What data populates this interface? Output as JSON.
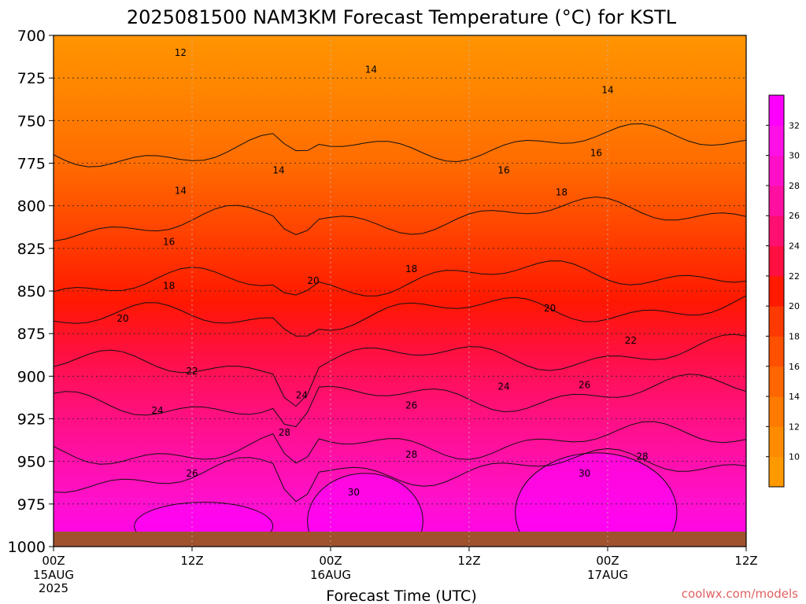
{
  "chart_data": {
    "type": "contour",
    "title": "2025081500 NAM3KM Forecast Temperature (°C) for KSTL",
    "xlabel": "Forecast Time (UTC)",
    "ylabel": "",
    "x_ticks": [
      {
        "hour": 0,
        "label": "00Z",
        "sub": "15AUG",
        "sub2": "2025"
      },
      {
        "hour": 12,
        "label": "12Z",
        "sub": "",
        "sub2": ""
      },
      {
        "hour": 24,
        "label": "00Z",
        "sub": "16AUG",
        "sub2": ""
      },
      {
        "hour": 36,
        "label": "12Z",
        "sub": "",
        "sub2": ""
      },
      {
        "hour": 48,
        "label": "00Z",
        "sub": "17AUG",
        "sub2": ""
      },
      {
        "hour": 60,
        "label": "12Z",
        "sub": "",
        "sub2": ""
      }
    ],
    "xlim": [
      0,
      60
    ],
    "y_levels": [
      700,
      725,
      750,
      775,
      800,
      825,
      850,
      875,
      900,
      925,
      950,
      975,
      1000
    ],
    "ylim": [
      700,
      1000
    ],
    "colorbar": {
      "min": 8,
      "max": 34,
      "step": 2,
      "labels": [
        10,
        12,
        14,
        16,
        18,
        20,
        22,
        24,
        26,
        28,
        30,
        32
      ],
      "colors": [
        "#ff9900",
        "#ff8c00",
        "#ff7a00",
        "#ff6600",
        "#ff5000",
        "#ff3a00",
        "#ff1a00",
        "#ff1040",
        "#ff1070",
        "#ff10a0",
        "#ff10c8",
        "#ff10e6",
        "#ff00ff"
      ]
    },
    "contour_levels": [
      12,
      14,
      16,
      18,
      20,
      22,
      24,
      26,
      28,
      30
    ],
    "contour_labels": [
      {
        "value": "12",
        "hour": 11.0,
        "pressure": 711
      },
      {
        "value": "14",
        "hour": 27.5,
        "pressure": 721
      },
      {
        "value": "14",
        "hour": 48.0,
        "pressure": 733
      },
      {
        "value": "16",
        "hour": 47.0,
        "pressure": 770
      },
      {
        "value": "14",
        "hour": 19.5,
        "pressure": 780
      },
      {
        "value": "16",
        "hour": 39.0,
        "pressure": 780
      },
      {
        "value": "14",
        "hour": 11.0,
        "pressure": 792
      },
      {
        "value": "18",
        "hour": 44.0,
        "pressure": 793
      },
      {
        "value": "16",
        "hour": 10.0,
        "pressure": 822
      },
      {
        "value": "18",
        "hour": 31.0,
        "pressure": 838
      },
      {
        "value": "20",
        "hour": 22.5,
        "pressure": 845
      },
      {
        "value": "18",
        "hour": 10.0,
        "pressure": 848
      },
      {
        "value": "20",
        "hour": 43.0,
        "pressure": 861
      },
      {
        "value": "20",
        "hour": 6.0,
        "pressure": 867
      },
      {
        "value": "22",
        "hour": 50.0,
        "pressure": 880
      },
      {
        "value": "22",
        "hour": 12.0,
        "pressure": 898
      },
      {
        "value": "26",
        "hour": 46.0,
        "pressure": 906
      },
      {
        "value": "24",
        "hour": 39.0,
        "pressure": 907
      },
      {
        "value": "24",
        "hour": 21.5,
        "pressure": 912
      },
      {
        "value": "26",
        "hour": 31.0,
        "pressure": 918
      },
      {
        "value": "24",
        "hour": 9.0,
        "pressure": 921
      },
      {
        "value": "28",
        "hour": 20.0,
        "pressure": 934
      },
      {
        "value": "28",
        "hour": 31.0,
        "pressure": 947
      },
      {
        "value": "28",
        "hour": 51.0,
        "pressure": 948
      },
      {
        "value": "26",
        "hour": 12.0,
        "pressure": 958
      },
      {
        "value": "30",
        "hour": 46.0,
        "pressure": 958
      },
      {
        "value": "30",
        "hour": 26.0,
        "pressure": 969
      }
    ],
    "surface": "ground below ~990 hPa shaded brown",
    "grid": true
  },
  "watermark": "coolwx.com/models"
}
